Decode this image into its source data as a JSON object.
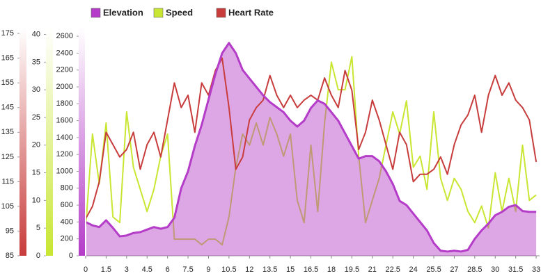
{
  "chart_data": {
    "type": "line",
    "x": [
      0,
      0.5,
      1,
      1.5,
      2,
      2.5,
      3,
      3.5,
      4,
      4.5,
      5,
      5.5,
      6,
      6.5,
      7,
      7.5,
      8,
      8.5,
      9,
      9.5,
      10,
      10.5,
      11,
      11.5,
      12,
      12.5,
      13,
      13.5,
      14,
      14.5,
      15,
      15.5,
      16,
      16.5,
      17,
      17.5,
      18,
      18.5,
      19,
      19.5,
      20,
      20.5,
      21,
      21.5,
      22,
      22.5,
      23,
      23.5,
      24,
      24.5,
      25,
      25.5,
      26,
      26.5,
      27,
      27.5,
      28,
      28.5,
      29,
      29.5,
      30,
      30.5,
      31,
      31.5,
      32,
      32.5,
      33
    ],
    "xlim": [
      0,
      33.25
    ],
    "xticks": [
      0,
      1.5,
      3,
      4.5,
      6,
      7.5,
      9,
      10.5,
      12,
      13.5,
      15,
      16.5,
      18,
      19.5,
      21,
      22.5,
      24,
      25.5,
      27,
      28.5,
      30,
      31.5,
      33
    ],
    "ylim": [
      0,
      2700
    ],
    "yticks": [
      0,
      200,
      400,
      600,
      800,
      1000,
      1200,
      1400,
      1600,
      1800,
      2000,
      2200,
      2400,
      2600
    ],
    "y2lim": [
      0,
      41.2
    ],
    "y2ticks": [
      0,
      5,
      10,
      15,
      20,
      25,
      30,
      35,
      40
    ],
    "y3lim": [
      85,
      177.3
    ],
    "y3ticks": [
      85,
      95,
      105,
      115,
      125,
      135,
      145,
      155,
      165,
      175
    ],
    "series": [
      {
        "name": "Elevation",
        "color": "#b43cc8",
        "axis": "y",
        "area": true,
        "values": [
          400,
          360,
          340,
          420,
          330,
          230,
          240,
          270,
          280,
          310,
          340,
          320,
          340,
          450,
          800,
          1000,
          1300,
          1550,
          1850,
          2150,
          2400,
          2520,
          2400,
          2200,
          2100,
          2000,
          1900,
          1820,
          1760,
          1700,
          1600,
          1530,
          1600,
          1750,
          1840,
          1800,
          1700,
          1600,
          1450,
          1300,
          1150,
          1180,
          1180,
          1120,
          1000,
          850,
          650,
          600,
          500,
          400,
          300,
          150,
          60,
          50,
          60,
          50,
          70,
          200,
          300,
          380,
          480,
          520,
          580,
          600,
          530,
          520,
          520
        ]
      },
      {
        "name": "Speed",
        "color": "#c8e632",
        "axis": "y2",
        "area": false,
        "values": [
          5,
          22,
          13,
          24,
          7,
          6,
          26,
          16,
          12,
          8,
          12,
          18,
          22,
          3,
          3,
          3,
          3,
          2,
          3,
          3,
          2,
          7,
          16,
          22,
          20,
          24,
          20,
          25,
          22,
          18,
          22,
          10,
          6,
          20,
          8,
          24,
          35,
          30,
          30,
          36,
          18,
          6,
          10,
          14,
          20,
          26,
          22,
          28,
          16,
          18,
          12,
          26,
          14,
          10,
          14,
          12,
          8,
          6,
          9,
          5,
          15,
          8,
          14,
          8,
          20,
          10,
          11
        ]
      },
      {
        "name": "Heart Rate",
        "color": "#c83c3c",
        "axis": "y3",
        "area": false,
        "values": [
          100,
          105,
          115,
          135,
          130,
          125,
          128,
          135,
          120,
          130,
          135,
          125,
          140,
          155,
          145,
          150,
          135,
          155,
          150,
          160,
          165,
          145,
          120,
          125,
          140,
          145,
          148,
          158,
          150,
          145,
          150,
          145,
          148,
          150,
          148,
          157,
          150,
          145,
          160,
          152,
          128,
          135,
          148,
          140,
          130,
          120,
          135,
          130,
          115,
          118,
          118,
          120,
          125,
          118,
          130,
          138,
          142,
          150,
          135,
          150,
          158,
          150,
          155,
          148,
          145,
          140,
          123
        ]
      }
    ]
  }
}
